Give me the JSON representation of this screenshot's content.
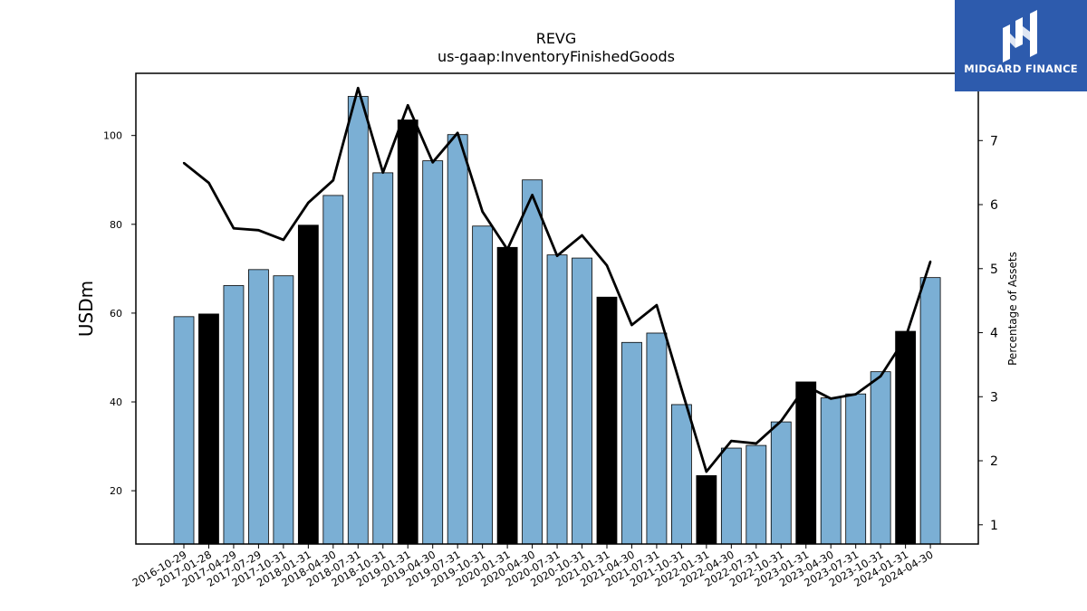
{
  "logo": {
    "text": "MIDGARD FINANCE",
    "icon": "midgard-logo-icon"
  },
  "colors": {
    "bar_regular": "#7bafd4",
    "bar_highlight": "#000000",
    "line": "#000000",
    "logo_bg": "#2d5bad"
  },
  "chart_data": {
    "type": "bar",
    "title": "REVG",
    "subtitle": "us-gaap:InventoryFinishedGoods",
    "ylabel": "USDm",
    "y2label": "Percentage of Assets",
    "ylim": [
      8,
      114
    ],
    "y2lim": [
      0.7,
      8.05
    ],
    "yticks": [
      20,
      40,
      60,
      80,
      100
    ],
    "y2ticks": [
      1,
      2,
      3,
      4,
      5,
      6,
      7
    ],
    "categories": [
      "2016-10-29",
      "2017-01-28",
      "2017-04-29",
      "2017-07-29",
      "2017-10-31",
      "2018-01-31",
      "2018-04-30",
      "2018-07-31",
      "2018-10-31",
      "2019-01-31",
      "2019-04-30",
      "2019-07-31",
      "2019-10-31",
      "2020-01-31",
      "2020-04-30",
      "2020-07-31",
      "2020-10-31",
      "2021-01-31",
      "2021-04-30",
      "2021-07-31",
      "2021-10-31",
      "2022-01-31",
      "2022-04-30",
      "2022-07-31",
      "2022-10-31",
      "2023-01-31",
      "2023-04-30",
      "2023-07-31",
      "2023-10-31",
      "2024-01-31",
      "2024-04-30"
    ],
    "series": [
      {
        "type": "bar",
        "values": [
          59.2,
          59.8,
          66.2,
          69.8,
          68.4,
          79.8,
          86.5,
          108.8,
          91.6,
          103.5,
          94.3,
          100.2,
          79.6,
          74.8,
          90.0,
          73.1,
          72.4,
          63.6,
          53.4,
          55.5,
          39.4,
          23.4,
          29.6,
          30.2,
          35.5,
          44.5,
          40.9,
          41.8,
          46.8,
          55.9,
          68.0
        ],
        "highlight": [
          false,
          true,
          false,
          false,
          false,
          true,
          false,
          false,
          false,
          true,
          false,
          false,
          false,
          true,
          false,
          false,
          false,
          true,
          false,
          false,
          false,
          true,
          false,
          false,
          false,
          true,
          false,
          false,
          false,
          true,
          false
        ]
      },
      {
        "type": "line",
        "axis": "right",
        "values": [
          6.65,
          6.34,
          5.63,
          5.6,
          5.45,
          6.03,
          6.38,
          7.82,
          6.5,
          7.55,
          6.66,
          7.12,
          5.89,
          5.3,
          6.15,
          5.2,
          5.52,
          5.05,
          4.12,
          4.43,
          3.12,
          1.83,
          2.31,
          2.27,
          2.62,
          3.17,
          2.97,
          3.04,
          3.32,
          3.92,
          5.11
        ]
      }
    ]
  }
}
